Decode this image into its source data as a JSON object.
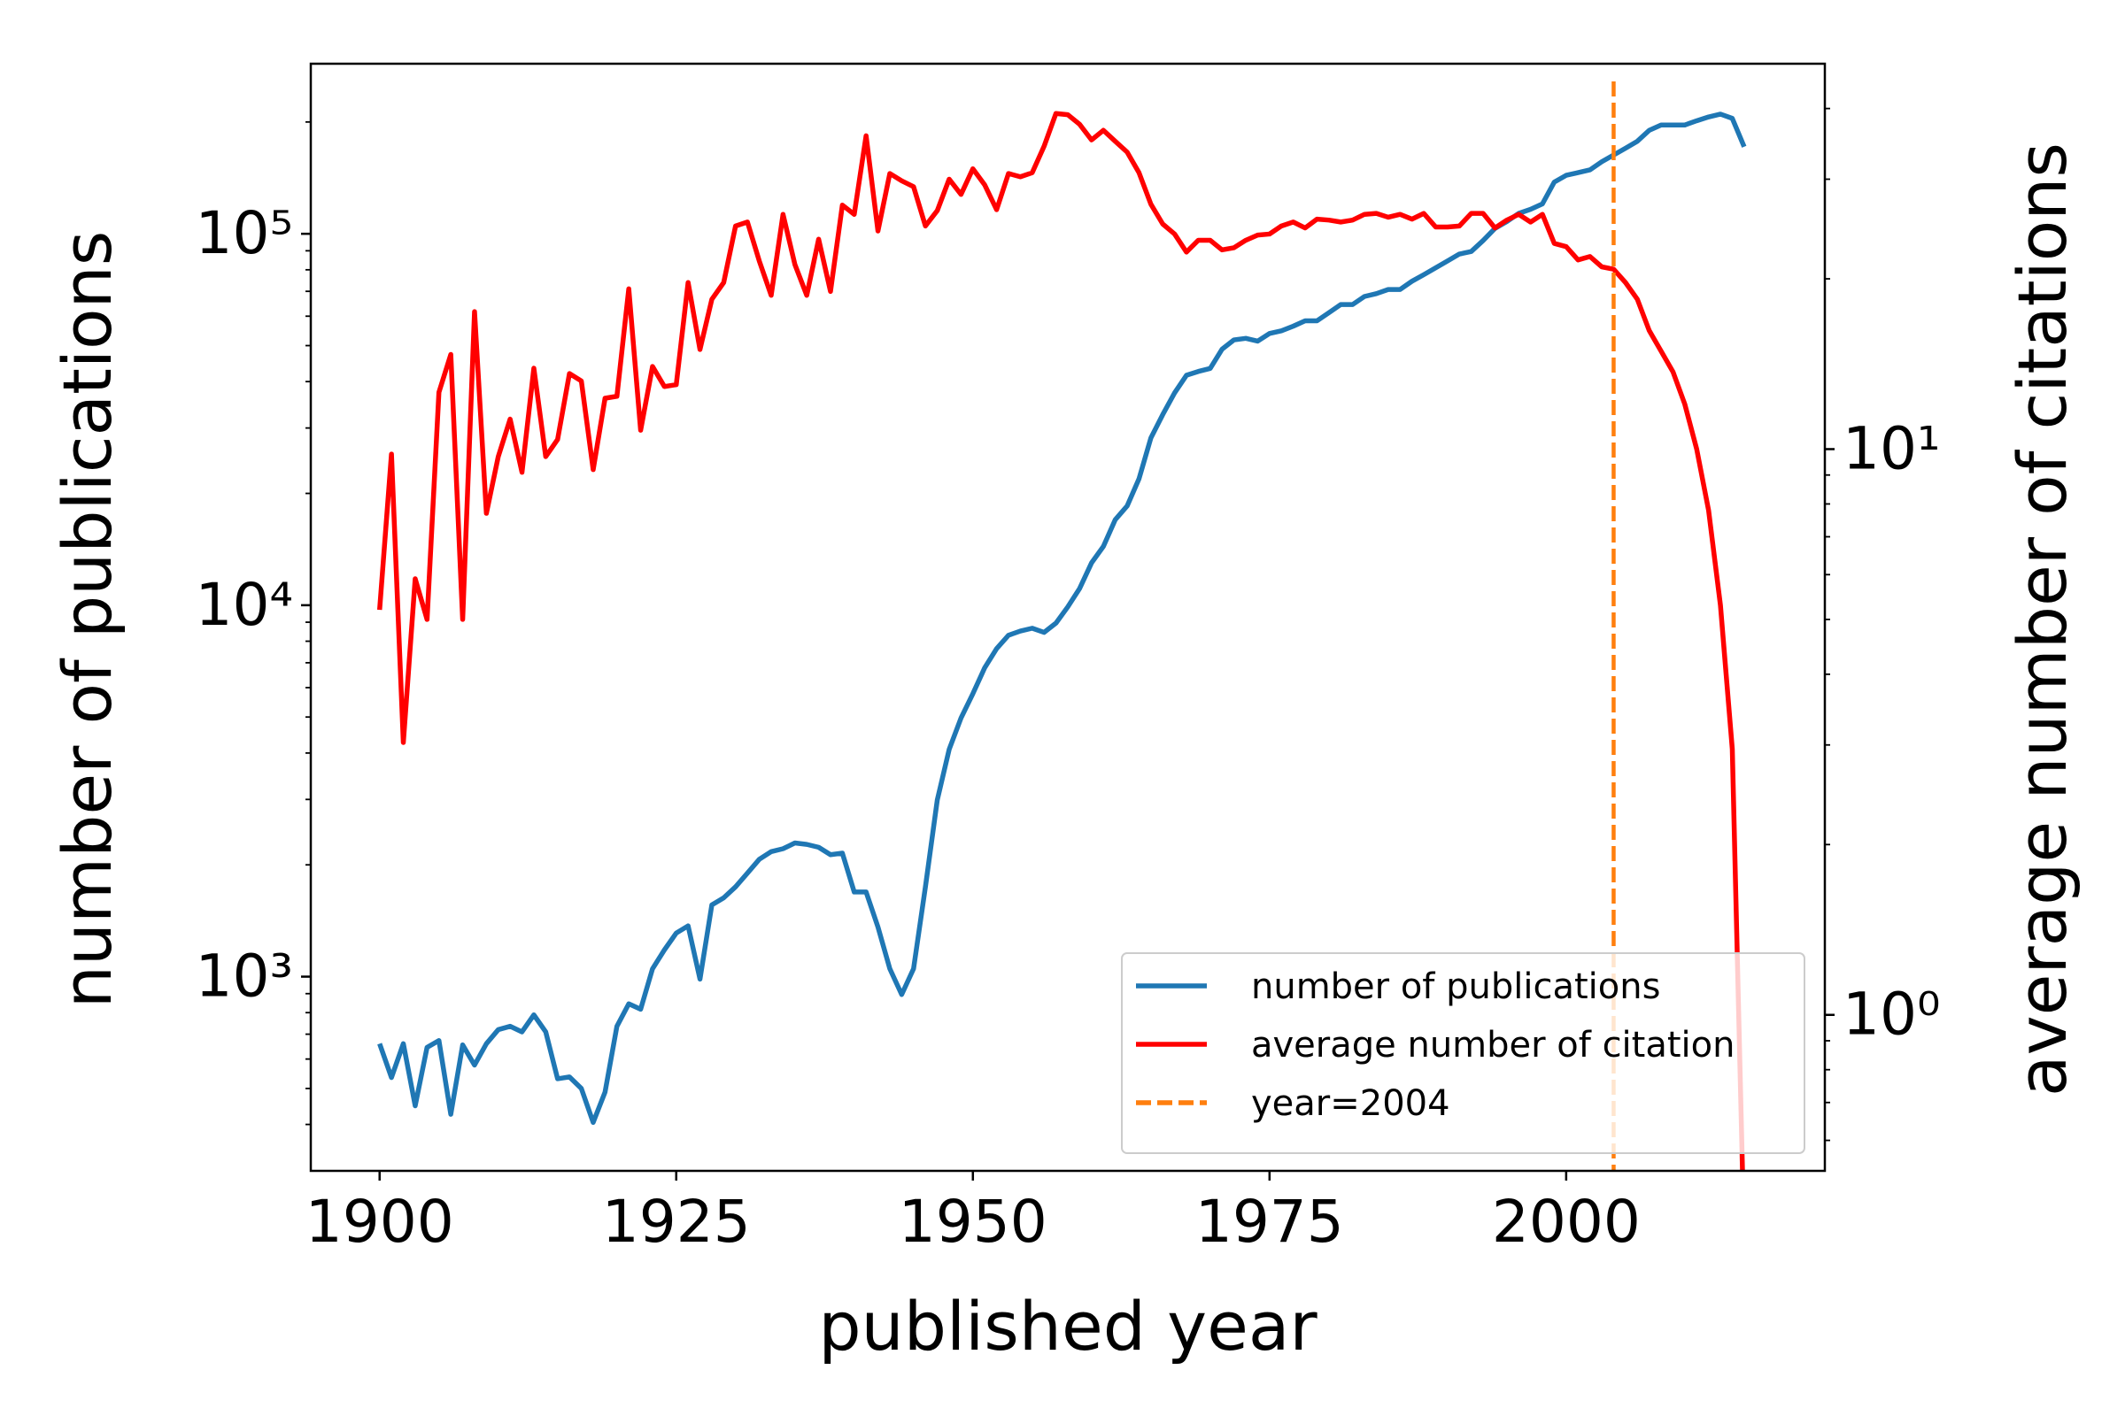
{
  "chart_data": {
    "type": "line",
    "xlabel": "published year",
    "ylabel": "number of publications",
    "y2label": "average number of citations",
    "x": [
      1900,
      1901,
      1902,
      1903,
      1904,
      1905,
      1906,
      1907,
      1908,
      1909,
      1910,
      1911,
      1912,
      1913,
      1914,
      1915,
      1916,
      1917,
      1918,
      1919,
      1920,
      1921,
      1922,
      1923,
      1924,
      1925,
      1926,
      1927,
      1928,
      1929,
      1930,
      1931,
      1932,
      1933,
      1934,
      1935,
      1936,
      1937,
      1938,
      1939,
      1940,
      1941,
      1942,
      1943,
      1944,
      1945,
      1946,
      1947,
      1948,
      1949,
      1950,
      1951,
      1952,
      1953,
      1954,
      1955,
      1956,
      1957,
      1958,
      1959,
      1960,
      1961,
      1962,
      1963,
      1964,
      1965,
      1966,
      1967,
      1968,
      1969,
      1970,
      1971,
      1972,
      1973,
      1974,
      1975,
      1976,
      1977,
      1978,
      1979,
      1980,
      1981,
      1982,
      1983,
      1984,
      1985,
      1986,
      1987,
      1988,
      1989,
      1990,
      1991,
      1992,
      1993,
      1994,
      1995,
      1996,
      1997,
      1998,
      1999,
      2000,
      2001,
      2002,
      2003,
      2004,
      2005,
      2006,
      2007,
      2008,
      2009,
      2010,
      2011,
      2012,
      2013,
      2014,
      2015
    ],
    "series": [
      {
        "name": "number of publications",
        "color": "#1f77b4",
        "axis": "y",
        "values": [
          660,
          535,
          660,
          449,
          645,
          673,
          426,
          655,
          578,
          660,
          720,
          735,
          710,
          789,
          710,
          531,
          537,
          500,
          405,
          489,
          735,
          845,
          817,
          1050,
          1180,
          1310,
          1370,
          985,
          1560,
          1630,
          1745,
          1900,
          2070,
          2170,
          2210,
          2290,
          2270,
          2230,
          2130,
          2150,
          1690,
          1690,
          1360,
          1050,
          895,
          1050,
          1745,
          2990,
          4090,
          4970,
          5780,
          6790,
          7640,
          8300,
          8520,
          8670,
          8450,
          8950,
          9900,
          11100,
          13000,
          14400,
          17000,
          18500,
          21900,
          28200,
          32600,
          37300,
          41600,
          42600,
          43400,
          48900,
          51800,
          52300,
          51400,
          53900,
          54800,
          56400,
          58300,
          58300,
          61300,
          64500,
          64500,
          67800,
          69000,
          70800,
          70800,
          74500,
          77600,
          81000,
          84500,
          88200,
          89600,
          95900,
          103400,
          107900,
          113500,
          116400,
          120400,
          137800,
          143700,
          146100,
          148600,
          156300,
          163000,
          170000,
          177500,
          189900,
          196300,
          196300,
          196300,
          201500,
          206300,
          210000,
          204500,
          171500
        ]
      },
      {
        "name": "average number of citation",
        "color": "#ff0000",
        "axis": "y2",
        "values": [
          5.2,
          9.8,
          3.03,
          5.9,
          5.0,
          12.6,
          14.7,
          5.0,
          17.5,
          7.7,
          9.7,
          11.3,
          9.1,
          13.9,
          9.7,
          10.4,
          13.6,
          13.2,
          9.2,
          12.3,
          12.4,
          19.2,
          10.8,
          14.0,
          12.9,
          13.0,
          19.7,
          15.0,
          18.4,
          19.7,
          24.8,
          25.2,
          21.5,
          18.7,
          26.0,
          21.2,
          18.7,
          23.5,
          19.0,
          27.0,
          26.0,
          35.8,
          24.3,
          30.7,
          29.8,
          29.1,
          24.8,
          26.4,
          30.0,
          28.2,
          31.3,
          29.3,
          26.5,
          30.7,
          30.3,
          30.8,
          34.3,
          39.2,
          39.0,
          37.5,
          35.2,
          36.6,
          35.0,
          33.5,
          30.8,
          27.1,
          25.0,
          24.0,
          22.3,
          23.4,
          23.4,
          22.5,
          22.7,
          23.4,
          23.9,
          24.0,
          24.8,
          25.2,
          24.6,
          25.5,
          25.4,
          25.2,
          25.4,
          26.0,
          26.1,
          25.7,
          26.0,
          25.5,
          26.1,
          24.7,
          24.7,
          24.8,
          26.1,
          26.1,
          24.6,
          25.4,
          26.0,
          25.2,
          26.0,
          23.1,
          22.8,
          21.6,
          21.9,
          21.0,
          20.8,
          19.7,
          18.4,
          16.2,
          14.9,
          13.7,
          12.0,
          10.0,
          7.8,
          5.3,
          2.95,
          0.4
        ]
      }
    ],
    "vlines": [
      {
        "name": "year=2004",
        "x": 2004,
        "color": "#ff7f0e",
        "style": "dashed"
      }
    ],
    "xlim": [
      1894.2,
      2021.8
    ],
    "xticks": [
      1900,
      1925,
      1950,
      1975,
      2000
    ],
    "ylog": true,
    "ylim": [
      300,
      287000
    ],
    "yticks": [
      {
        "value": 1000,
        "label": "10³"
      },
      {
        "value": 10000,
        "label": "10⁴"
      },
      {
        "value": 100000,
        "label": "10⁵"
      }
    ],
    "yminorticks": [
      400,
      500,
      600,
      700,
      800,
      900,
      2000,
      3000,
      4000,
      5000,
      6000,
      7000,
      8000,
      9000,
      20000,
      30000,
      40000,
      50000,
      60000,
      70000,
      80000,
      90000,
      200000
    ],
    "y2log": true,
    "y2lim": [
      0.53,
      48
    ],
    "y2ticks": [
      {
        "value": 1,
        "label": "10⁰"
      },
      {
        "value": 10,
        "label": "10¹"
      }
    ],
    "y2minorticks": [
      0.6,
      0.7,
      0.8,
      0.9,
      2,
      3,
      4,
      5,
      6,
      7,
      8,
      9,
      20,
      30,
      40
    ],
    "legend": "lower right"
  }
}
